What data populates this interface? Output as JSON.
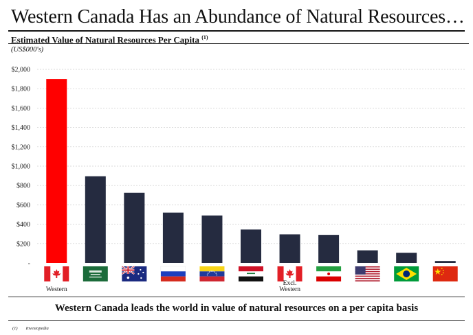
{
  "title": "Western Canada Has an Abundance of Natural Resources…",
  "subtitle": "Estimated Value of Natural Resources Per Capita",
  "subtitle_note": "(1)",
  "unit": "(US$000's)",
  "caption": "Western Canada leads the world in value of natural resources on a per capita basis",
  "footnote": {
    "marker": "(1)",
    "text": "Investopedia"
  },
  "colors": {
    "highlight": "#ff0000",
    "bar": "#252b40",
    "grid": "#cccccc"
  },
  "chart_data": {
    "type": "bar",
    "title": "Estimated Value of Natural Resources Per Capita",
    "ylabel": "(US$000's)",
    "ylim": [
      0,
      2000
    ],
    "yticks": [
      0,
      200,
      400,
      600,
      800,
      1000,
      1200,
      1400,
      1600,
      1800,
      2000
    ],
    "ytick_labels": [
      "-",
      "$200",
      "$400",
      "$600",
      "$800",
      "$1,000",
      "$1,200",
      "$1,400",
      "$1,600",
      "$1,800",
      "$2,000"
    ],
    "grid": true,
    "categories": [
      {
        "flag": "canada-flag",
        "label": "Western",
        "value": 1900,
        "highlight": true
      },
      {
        "flag": "saudi-arabia-flag",
        "label": "",
        "value": 895
      },
      {
        "flag": "australia-flag",
        "label": "",
        "value": 725
      },
      {
        "flag": "russia-flag",
        "label": "",
        "value": 520
      },
      {
        "flag": "venezuela-flag",
        "label": "",
        "value": 490
      },
      {
        "flag": "iraq-flag",
        "label": "",
        "value": 345
      },
      {
        "flag": "canada-flag",
        "label": "Excl. Western",
        "value": 295
      },
      {
        "flag": "iran-flag",
        "label": "",
        "value": 290
      },
      {
        "flag": "united-states-flag",
        "label": "",
        "value": 130
      },
      {
        "flag": "brazil-flag",
        "label": "",
        "value": 105
      },
      {
        "flag": "china-flag",
        "label": "",
        "value": 20
      }
    ]
  }
}
